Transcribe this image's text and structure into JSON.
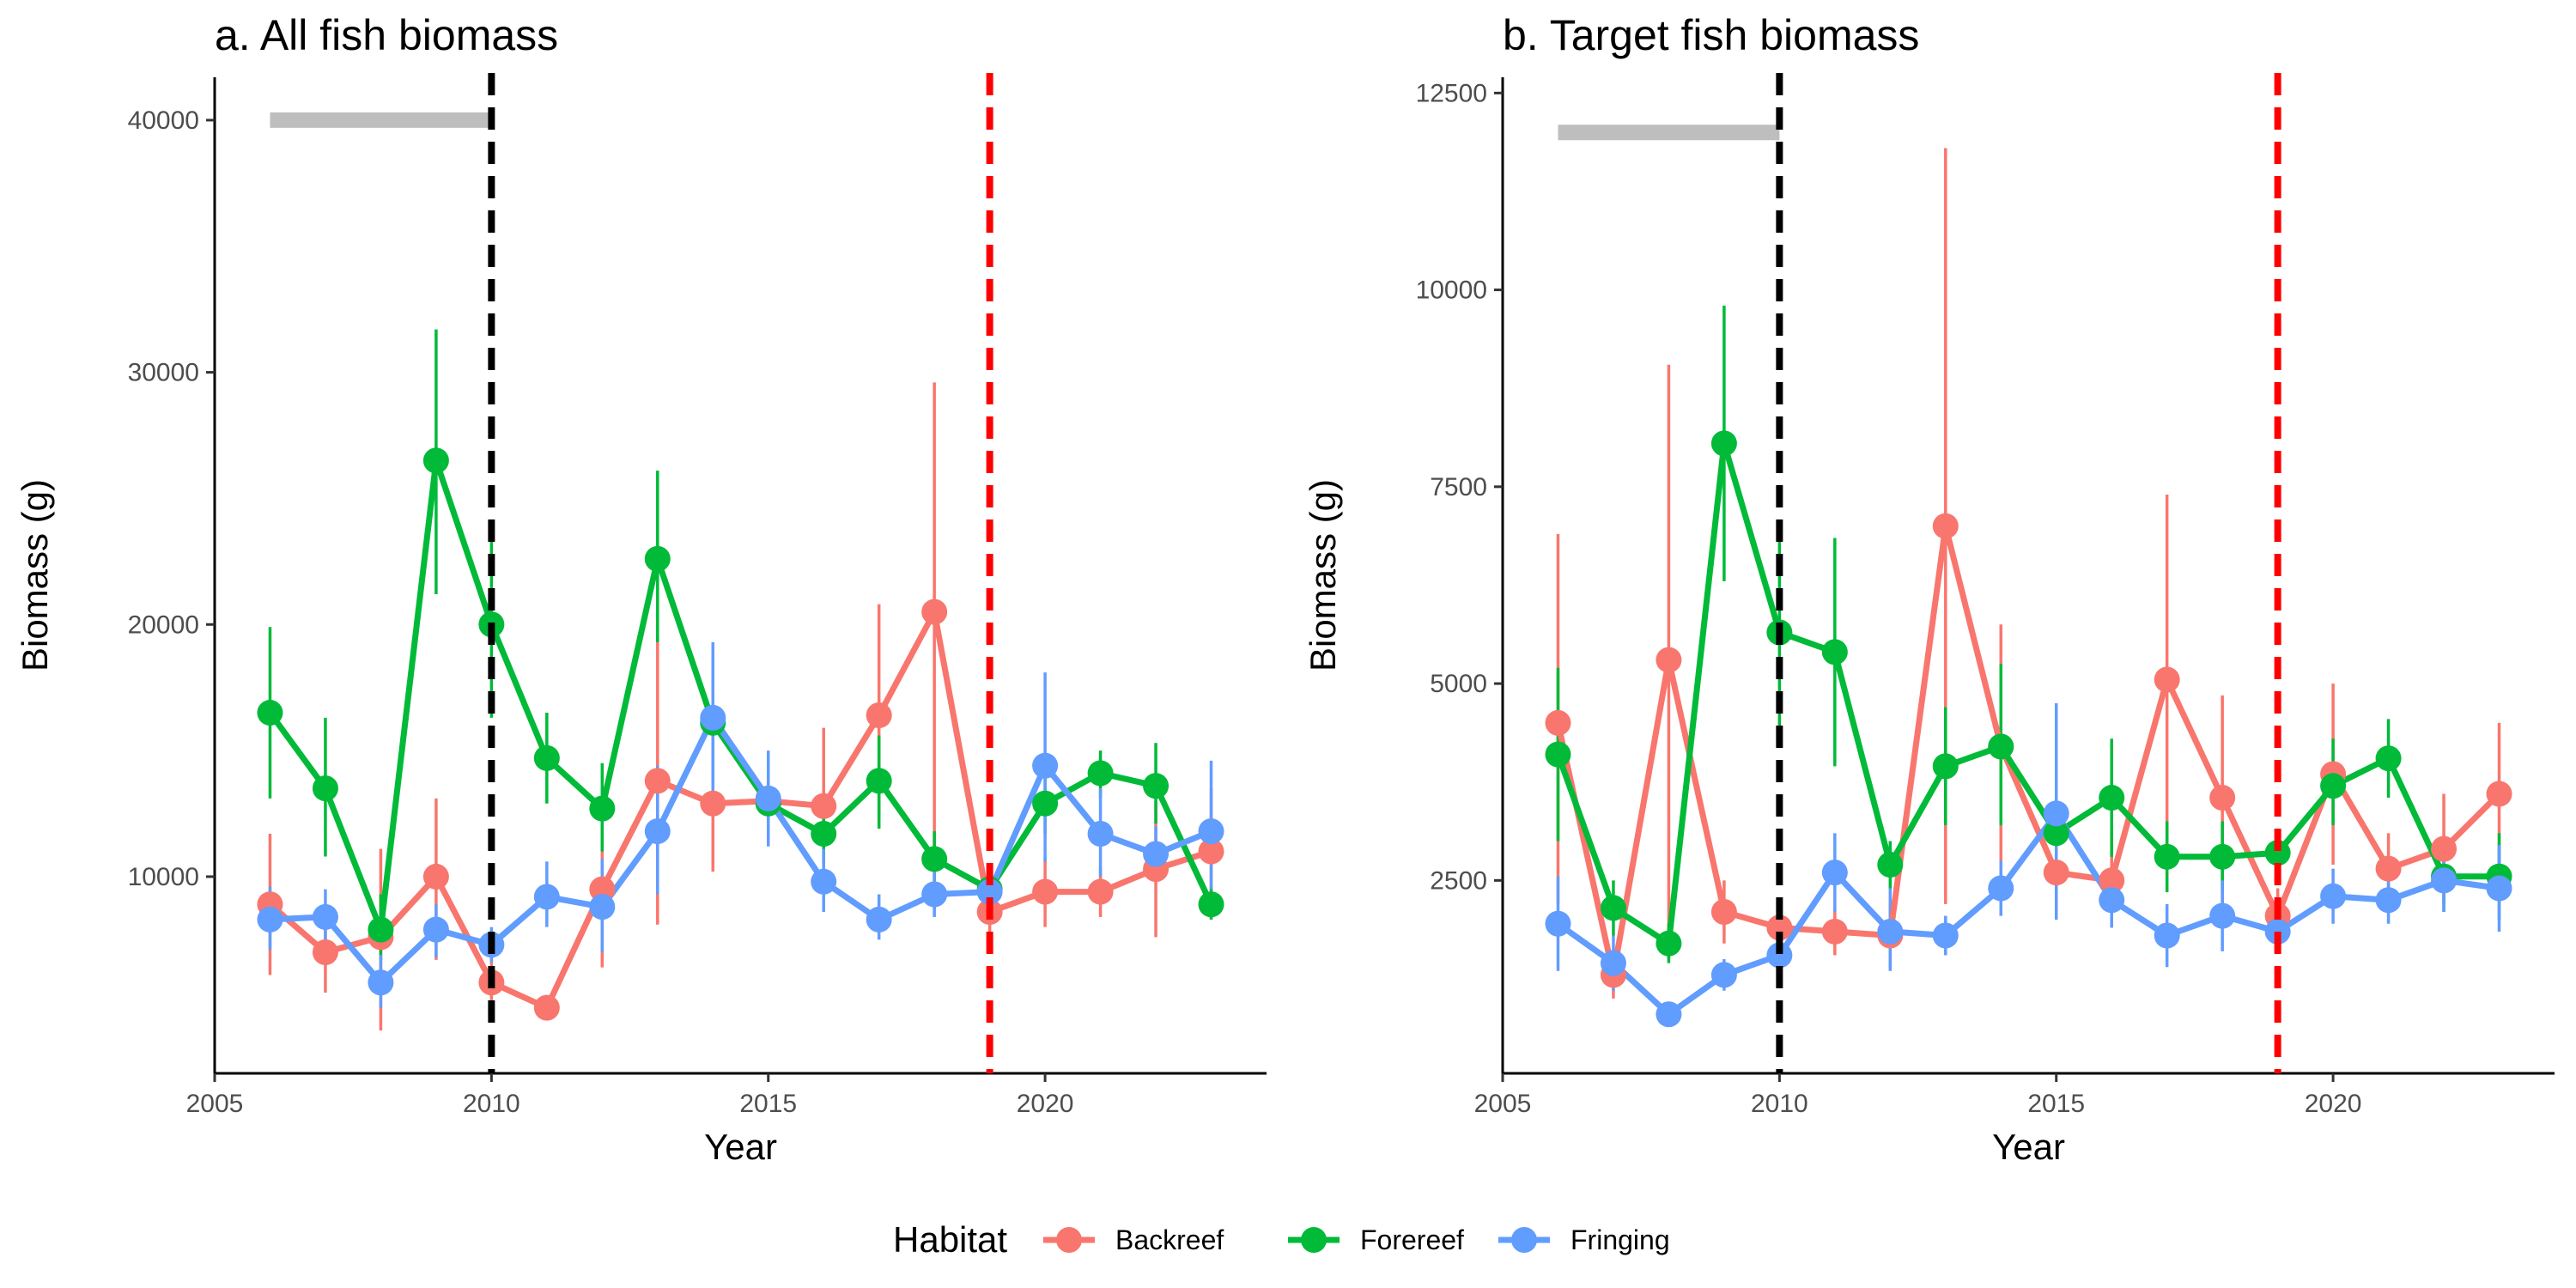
{
  "legend": {
    "title": "Habitat",
    "placement": "bottom",
    "entries": [
      {
        "name": "Backreef",
        "color": "#F8766D"
      },
      {
        "name": "Forereef",
        "color": "#00BA38"
      },
      {
        "name": "Fringing",
        "color": "#619CFF"
      }
    ]
  },
  "chart_data": [
    {
      "type": "line",
      "title": "a. All fish biomass",
      "xlabel": "Year",
      "ylabel": "Biomass (g)",
      "xlim": [
        2005,
        2024
      ],
      "ylim": [
        2200,
        41700
      ],
      "x_ticks": [
        2005,
        2010,
        2015,
        2020
      ],
      "y_ticks": [
        10000,
        20000,
        30000,
        40000
      ],
      "grid": false,
      "annotations": {
        "gray_bar": {
          "x_start": 2006,
          "x_end": 2010,
          "y": 40000,
          "color": "#BEBEBE"
        },
        "vlines": [
          {
            "x": 2010,
            "color": "#000000",
            "style": "dashed"
          },
          {
            "x": 2019,
            "color": "#FF0000",
            "style": "dashed"
          }
        ]
      },
      "x": [
        2006,
        2007,
        2008,
        2009,
        2010,
        2011,
        2012,
        2013,
        2014,
        2015,
        2016,
        2017,
        2018,
        2019,
        2020,
        2021,
        2022,
        2023
      ],
      "series": [
        {
          "name": "Backreef",
          "color": "#F8766D",
          "values": [
            8900,
            7000,
            7600,
            10000,
            5800,
            4800,
            9500,
            13800,
            12900,
            13000,
            12800,
            16400,
            20500,
            8600,
            9400,
            9400,
            10300,
            11000
          ],
          "err_low": [
            6100,
            5400,
            3900,
            6700,
            5100,
            4400,
            6400,
            8100,
            10200,
            11300,
            10500,
            12300,
            8700,
            7000,
            8000,
            8400,
            7600,
            8300
          ],
          "err_high": [
            11700,
            8800,
            11100,
            13100,
            7000,
            5300,
            12700,
            19500,
            15800,
            14800,
            15900,
            20800,
            29600,
            10200,
            10800,
            10400,
            13000,
            13500
          ]
        },
        {
          "name": "Forereef",
          "color": "#00BA38",
          "values": [
            16500,
            13500,
            7900,
            26500,
            20000,
            14700,
            12700,
            22600,
            16100,
            12900,
            11700,
            13800,
            10700,
            9500,
            12900,
            14100,
            13600,
            8900
          ],
          "err_low": [
            13100,
            10800,
            6700,
            21200,
            16300,
            12900,
            11000,
            19300,
            13600,
            11600,
            10600,
            11900,
            9700,
            8900,
            11700,
            13100,
            12100,
            8300
          ],
          "err_high": [
            19900,
            16300,
            9300,
            31700,
            23800,
            16500,
            14500,
            26100,
            18900,
            14000,
            12900,
            15600,
            11800,
            10200,
            14000,
            15000,
            15300,
            9600
          ]
        },
        {
          "name": "Fringing",
          "color": "#619CFF",
          "values": [
            8300,
            8400,
            5800,
            7900,
            7300,
            9200,
            8800,
            11800,
            16300,
            13100,
            9800,
            8300,
            9300,
            9400,
            14400,
            11700,
            10900,
            11800
          ],
          "err_low": [
            7100,
            7400,
            4800,
            6800,
            6600,
            8000,
            7000,
            9300,
            13300,
            11200,
            8600,
            7500,
            8400,
            8500,
            10600,
            10000,
            9900,
            9500
          ],
          "err_high": [
            9600,
            9500,
            6900,
            8900,
            8000,
            10600,
            10700,
            14400,
            19300,
            15000,
            11100,
            9300,
            10200,
            10200,
            18100,
            13500,
            12000,
            14600
          ]
        }
      ]
    },
    {
      "type": "line",
      "title": "b. Target fish biomass",
      "xlabel": "Year",
      "ylabel": "Biomass (g)",
      "xlim": [
        2005,
        2024
      ],
      "ylim": [
        50,
        12700
      ],
      "x_ticks": [
        2005,
        2010,
        2015,
        2020
      ],
      "y_ticks": [
        2500,
        5000,
        7500,
        10000,
        12500
      ],
      "grid": false,
      "annotations": {
        "gray_bar": {
          "x_start": 2006,
          "x_end": 2010,
          "y": 12000,
          "color": "#BEBEBE"
        },
        "vlines": [
          {
            "x": 2010,
            "color": "#000000",
            "style": "dashed"
          },
          {
            "x": 2019,
            "color": "#FF0000",
            "style": "dashed"
          }
        ]
      },
      "x": [
        2006,
        2007,
        2008,
        2009,
        2010,
        2011,
        2012,
        2013,
        2014,
        2015,
        2016,
        2017,
        2018,
        2019,
        2020,
        2021,
        2022,
        2023
      ],
      "series": [
        {
          "name": "Backreef",
          "color": "#F8766D",
          "values": [
            4500,
            1300,
            5300,
            2100,
            1900,
            1850,
            1800,
            7000,
            4200,
            2600,
            2500,
            5050,
            3550,
            2050,
            3850,
            2650,
            2900,
            3600
          ],
          "err_low": [
            2200,
            1000,
            1500,
            1700,
            1600,
            1550,
            1400,
            2200,
            2600,
            2100,
            1900,
            2700,
            2200,
            1700,
            2700,
            2200,
            2200,
            2600
          ],
          "err_high": [
            6900,
            1600,
            9050,
            2500,
            2200,
            2150,
            2200,
            11800,
            5750,
            3100,
            3100,
            7400,
            4850,
            2400,
            5000,
            3100,
            3600,
            4500
          ]
        },
        {
          "name": "Forereef",
          "color": "#00BA38",
          "values": [
            4100,
            2150,
            1700,
            8050,
            5650,
            5400,
            2700,
            3950,
            4200,
            3100,
            3550,
            2800,
            2800,
            2850,
            3700,
            4050,
            2550,
            2550
          ],
          "err_low": [
            3000,
            1800,
            1450,
            6300,
            4400,
            3950,
            2400,
            3200,
            3200,
            2700,
            2800,
            2350,
            2350,
            2550,
            3200,
            3550,
            2100,
            2000
          ],
          "err_high": [
            5200,
            2500,
            1950,
            9800,
            6950,
            6850,
            3000,
            4700,
            5250,
            3500,
            4300,
            3250,
            3250,
            3150,
            4300,
            4550,
            3000,
            3100
          ]
        },
        {
          "name": "Fringing",
          "color": "#619CFF",
          "values": [
            1950,
            1450,
            800,
            1300,
            1550,
            2600,
            1850,
            1800,
            2400,
            3350,
            2250,
            1800,
            2050,
            1850,
            2300,
            2250,
            2500,
            2400
          ],
          "err_low": [
            1350,
            1100,
            650,
            1100,
            1300,
            2100,
            1350,
            1550,
            2050,
            2000,
            1900,
            1400,
            1600,
            1650,
            1950,
            1950,
            2100,
            1850
          ],
          "err_high": [
            2550,
            1800,
            950,
            1500,
            1800,
            3100,
            2400,
            2050,
            2750,
            4750,
            2600,
            2200,
            2500,
            2050,
            2650,
            2550,
            2900,
            2950
          ]
        }
      ]
    }
  ]
}
